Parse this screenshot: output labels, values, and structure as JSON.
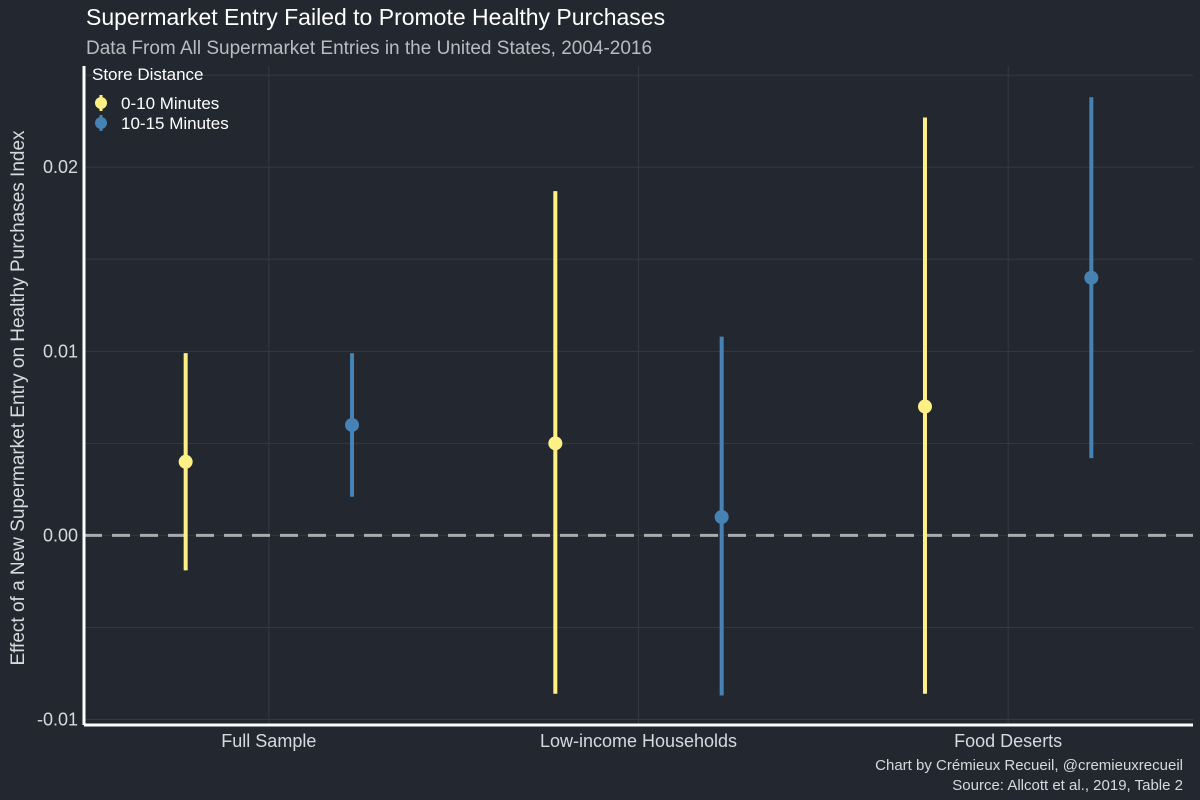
{
  "chart_data": {
    "type": "pointrange",
    "title": "Supermarket Entry Failed to Promote Healthy Purchases",
    "subtitle": "Data From All Supermarket Entries in the United States, 2004-2016",
    "xlabel": "",
    "ylabel": "Effect of a New Supermarket Entry on Healthy Purchases Index",
    "categories": [
      "Full Sample",
      "Low-income Households",
      "Food Deserts"
    ],
    "ylim": [
      -0.0103,
      0.0255
    ],
    "yticks": [
      -0.01,
      0.0,
      0.01,
      0.02
    ],
    "ytick_labels": [
      "-0.01",
      "0.00",
      "0.01",
      "0.02"
    ],
    "reference_line": 0.0,
    "legend": {
      "title": "Store Distance",
      "placement": "top-left"
    },
    "series": [
      {
        "name": "0-10 Minutes",
        "color": "#fff085",
        "points": [
          {
            "category": "Full Sample",
            "estimate": 0.004,
            "low": -0.0019,
            "high": 0.0099
          },
          {
            "category": "Low-income Households",
            "estimate": 0.005,
            "low": -0.0086,
            "high": 0.0187
          },
          {
            "category": "Food Deserts",
            "estimate": 0.007,
            "low": -0.0086,
            "high": 0.0227
          }
        ]
      },
      {
        "name": "10-15 Minutes",
        "color": "#4682b4",
        "points": [
          {
            "category": "Full Sample",
            "estimate": 0.006,
            "low": 0.0021,
            "high": 0.0099
          },
          {
            "category": "Low-income Households",
            "estimate": 0.001,
            "low": -0.0087,
            "high": 0.0108
          },
          {
            "category": "Food Deserts",
            "estimate": 0.014,
            "low": 0.0042,
            "high": 0.0238
          }
        ]
      }
    ],
    "caption_lines": [
      "Chart by Crémieux Recueil, @cremieuxrecueil",
      "Source: Allcott et al., 2019, Table 2"
    ]
  },
  "colors": {
    "background": "#232830",
    "grid": "#343942",
    "axis": "#ffffff",
    "reference_line": "#a9abae"
  }
}
